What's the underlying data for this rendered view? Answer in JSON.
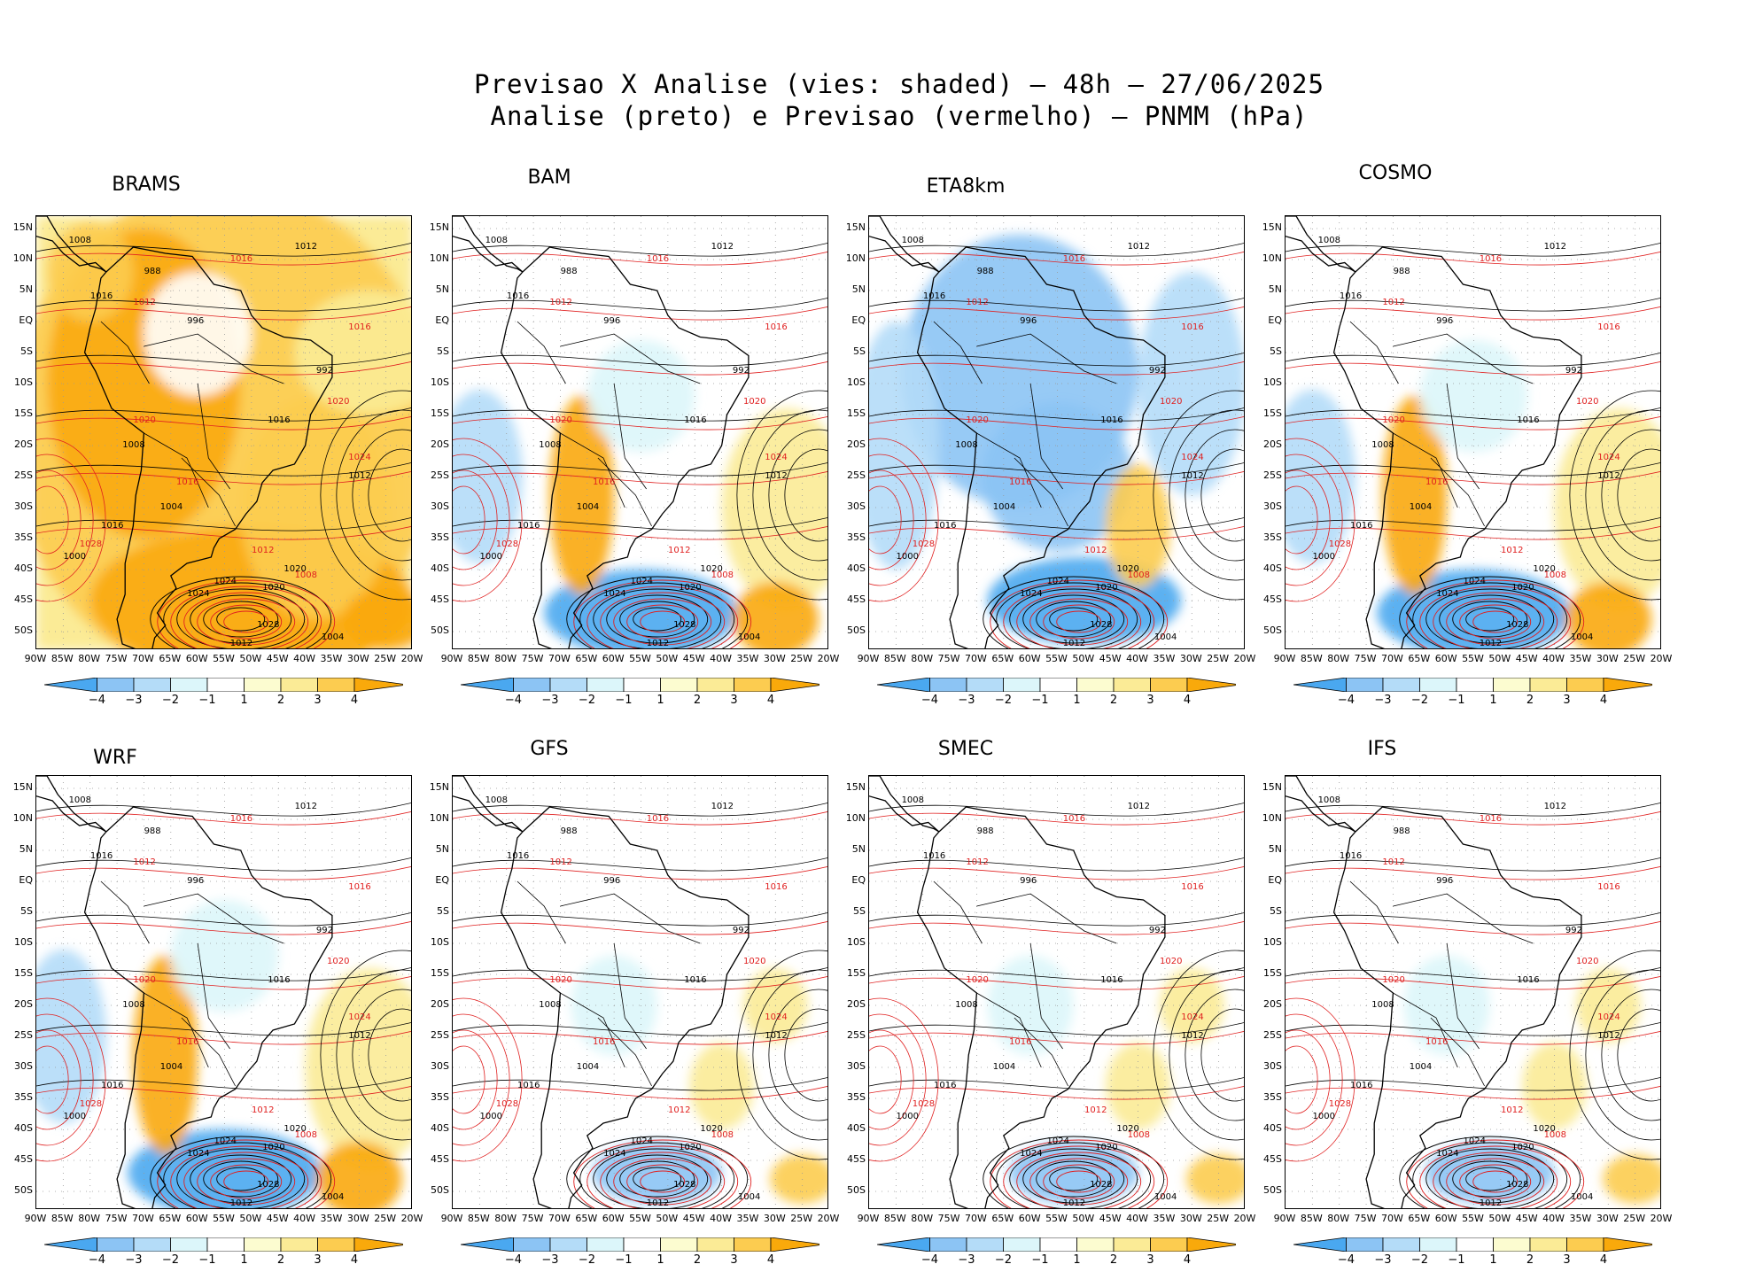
{
  "header": {
    "line1": "Previsao X Analise (vies: shaded) — 48h — 27/06/2025",
    "line2": "Analise (preto) e Previsao (vermelho) — PNMM (hPa)"
  },
  "colors": {
    "neg4": "#4aa8f0",
    "neg3": "#8cc4f4",
    "neg2": "#b4dcf8",
    "neg1": "#dcf6fa",
    "zero": "#ffffff",
    "pos1": "#fcfcd0",
    "pos2": "#fbeb96",
    "pos3": "#fccc50",
    "pos4": "#f9a90b",
    "analysis_contour": "#000000",
    "forecast_contour": "#e02020",
    "grid": "#999999"
  },
  "colorbar_ticks": [
    "−4",
    "−3",
    "−2",
    "−1",
    "1",
    "2",
    "3",
    "4"
  ],
  "lat_labels": [
    "15N",
    "10N",
    "5N",
    "EQ",
    "5S",
    "10S",
    "15S",
    "20S",
    "25S",
    "30S",
    "35S",
    "40S",
    "45S",
    "50S"
  ],
  "lon_labels": [
    "90W",
    "85W",
    "80W",
    "75W",
    "70W",
    "65W",
    "60W",
    "55W",
    "50W",
    "45W",
    "40W",
    "35W",
    "30W",
    "25W",
    "20W"
  ],
  "panels": [
    {
      "model": "BRAMS",
      "bias": "warm"
    },
    {
      "model": "BAM",
      "bias": "mixed"
    },
    {
      "model": "ETA8km",
      "bias": "cold"
    },
    {
      "model": "COSMO",
      "bias": "mixed"
    },
    {
      "model": "WRF",
      "bias": "mixed"
    },
    {
      "model": "GFS",
      "bias": "neutral"
    },
    {
      "model": "SMEC",
      "bias": "neutral"
    },
    {
      "model": "IFS",
      "bias": "neutral"
    }
  ],
  "isobar_labels": {
    "analysis": [
      "1008",
      "1012",
      "1016",
      "1016",
      "1012",
      "1016",
      "1020",
      "1020",
      "1024",
      "1024",
      "1028",
      "1012",
      "1008",
      "1004",
      "1000",
      "996",
      "992",
      "988",
      "1004"
    ],
    "forecast": [
      "1016",
      "1012",
      "1016",
      "1020",
      "1024",
      "1028",
      "1008",
      "1012",
      "1016",
      "1020"
    ]
  },
  "chart_data": {
    "type": "heatmap",
    "title": "Previsao X Analise (vies: shaded) — 48h — 27/06/2025",
    "subtitle": "Analise (preto) e Previsao (vermelho) — PNMM (hPa)",
    "variable": "PNMM bias (hPa)",
    "xlabel": "",
    "ylabel": "",
    "lon_range": [
      -90,
      -20
    ],
    "lat_range": [
      -53,
      17
    ],
    "colorbar": [
      -4,
      -3,
      -2,
      -1,
      1,
      2,
      3,
      4
    ],
    "models": [
      "BRAMS",
      "BAM",
      "ETA8km",
      "COSMO",
      "WRF",
      "GFS",
      "SMEC",
      "IFS"
    ],
    "contour_levels_hPa": [
      988,
      992,
      996,
      1000,
      1004,
      1008,
      1012,
      1016,
      1020,
      1024,
      1028
    ]
  }
}
